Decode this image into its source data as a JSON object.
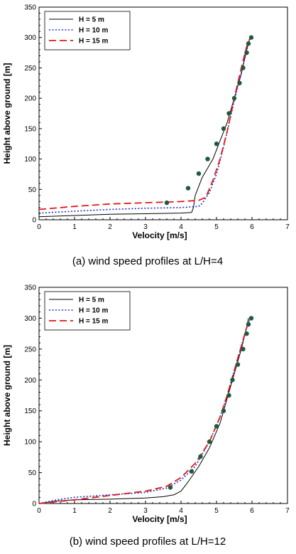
{
  "chart_data": [
    {
      "type": "line",
      "caption": "(a)  wind speed profiles at L/H=4",
      "xlabel": "Velocity [m/s]",
      "ylabel": "Height above ground [m]",
      "xlim": [
        0,
        7
      ],
      "ylim": [
        0,
        350
      ],
      "xticks": [
        0,
        1,
        2,
        3,
        4,
        5,
        6,
        7
      ],
      "yticks": [
        0,
        50,
        100,
        150,
        200,
        250,
        300,
        350
      ],
      "grid": false,
      "legend_position": "top-left",
      "series": [
        {
          "name": "H = 5 m",
          "style": "solid",
          "color": "#000000",
          "x": [
            0,
            1,
            2,
            3,
            4,
            4.3,
            4.35,
            4.4,
            4.6,
            4.9,
            5.1,
            5.3,
            5.5,
            5.7,
            5.85,
            5.95
          ],
          "y": [
            5,
            7,
            9,
            10,
            11,
            12,
            20,
            40,
            70,
            100,
            130,
            160,
            200,
            240,
            280,
            300
          ]
        },
        {
          "name": "H = 10 m",
          "style": "dotted",
          "color": "#2030d0",
          "x": [
            0,
            1,
            2,
            3,
            4,
            4.5,
            4.6,
            4.8,
            5.0,
            5.2,
            5.4,
            5.6,
            5.75,
            5.9,
            5.95
          ],
          "y": [
            11,
            14,
            17,
            19,
            20,
            22,
            27,
            45,
            75,
            120,
            170,
            220,
            255,
            290,
            300
          ]
        },
        {
          "name": "H = 15 m",
          "style": "dashed",
          "color": "#e01818",
          "x": [
            0,
            1,
            2,
            3,
            4,
            4.5,
            4.7,
            4.9,
            5.1,
            5.3,
            5.5,
            5.7,
            5.85,
            5.95
          ],
          "y": [
            17,
            22,
            26,
            28,
            30,
            32,
            37,
            65,
            100,
            145,
            200,
            250,
            285,
            300
          ]
        },
        {
          "name": "",
          "style": "markers",
          "color": "#1f5a3c",
          "x": [
            3.6,
            4.2,
            4.5,
            4.75,
            5.0,
            5.2,
            5.35,
            5.5,
            5.65,
            5.75,
            5.85,
            5.9,
            5.98
          ],
          "y": [
            28,
            52,
            76,
            100,
            125,
            150,
            175,
            200,
            225,
            250,
            275,
            290,
            300
          ]
        }
      ]
    },
    {
      "type": "line",
      "caption": "(b)  wind speed profiles at L/H=12",
      "xlabel": "Velocity [m/s]",
      "ylabel": "Height above ground [m]",
      "xlim": [
        0,
        7
      ],
      "ylim": [
        0,
        350
      ],
      "xticks": [
        0,
        1,
        2,
        3,
        4,
        5,
        6,
        7
      ],
      "yticks": [
        0,
        50,
        100,
        150,
        200,
        250,
        300,
        350
      ],
      "grid": false,
      "legend_position": "top-left",
      "series": [
        {
          "name": "H = 5 m",
          "style": "solid",
          "color": "#000000",
          "x": [
            0,
            0.5,
            1.0,
            2.0,
            3.0,
            3.5,
            3.8,
            4.0,
            4.2,
            4.5,
            4.8,
            5.1,
            5.3,
            5.5,
            5.7,
            5.85,
            5.9
          ],
          "y": [
            0,
            4,
            6,
            7,
            9,
            11,
            14,
            20,
            35,
            60,
            90,
            130,
            170,
            210,
            250,
            285,
            300
          ]
        },
        {
          "name": "H = 10 m",
          "style": "dotted",
          "color": "#2030d0",
          "x": [
            0,
            0.5,
            1.0,
            2.0,
            3.0,
            3.6,
            4.0,
            4.4,
            4.8,
            5.1,
            5.3,
            5.5,
            5.7,
            5.85,
            5.95
          ],
          "y": [
            0,
            6,
            10,
            14,
            18,
            25,
            38,
            60,
            100,
            140,
            175,
            215,
            255,
            285,
            300
          ]
        },
        {
          "name": "H = 15 m",
          "style": "dashed",
          "color": "#e01818",
          "x": [
            0,
            0.5,
            1.0,
            2.0,
            3.0,
            3.6,
            4.0,
            4.4,
            4.8,
            5.1,
            5.3,
            5.5,
            5.7,
            5.85,
            5.95
          ],
          "y": [
            0,
            3,
            6,
            13,
            20,
            28,
            42,
            65,
            100,
            140,
            175,
            215,
            255,
            285,
            300
          ]
        },
        {
          "name": "",
          "style": "markers",
          "color": "#1f5a3c",
          "x": [
            3.7,
            4.3,
            4.55,
            4.8,
            5.0,
            5.2,
            5.35,
            5.45,
            5.6,
            5.75,
            5.85,
            5.9,
            5.98
          ],
          "y": [
            26,
            52,
            76,
            100,
            125,
            150,
            175,
            200,
            225,
            250,
            275,
            290,
            300
          ]
        }
      ]
    }
  ]
}
